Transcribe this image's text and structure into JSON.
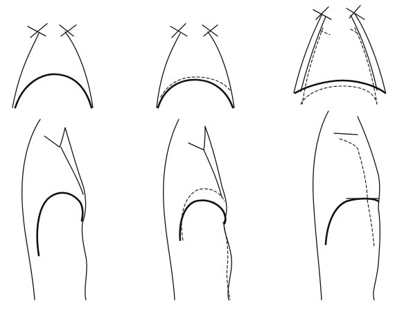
{
  "figure": {
    "panels": [
      {
        "view": "frontal",
        "state": "reference",
        "outline": "solid"
      },
      {
        "view": "frontal",
        "state": "comparison",
        "outline": "solid-and-dashed"
      },
      {
        "view": "frontal",
        "state": "comparison",
        "outline": "solid-and-dashed"
      },
      {
        "view": "lateral",
        "state": "reference",
        "outline": "solid"
      },
      {
        "view": "lateral",
        "state": "comparison",
        "outline": "solid-and-dashed"
      },
      {
        "view": "lateral",
        "state": "comparison",
        "outline": "solid-and-dashed"
      }
    ],
    "colors": {
      "line": "#111111",
      "background": "#ffffff"
    }
  }
}
